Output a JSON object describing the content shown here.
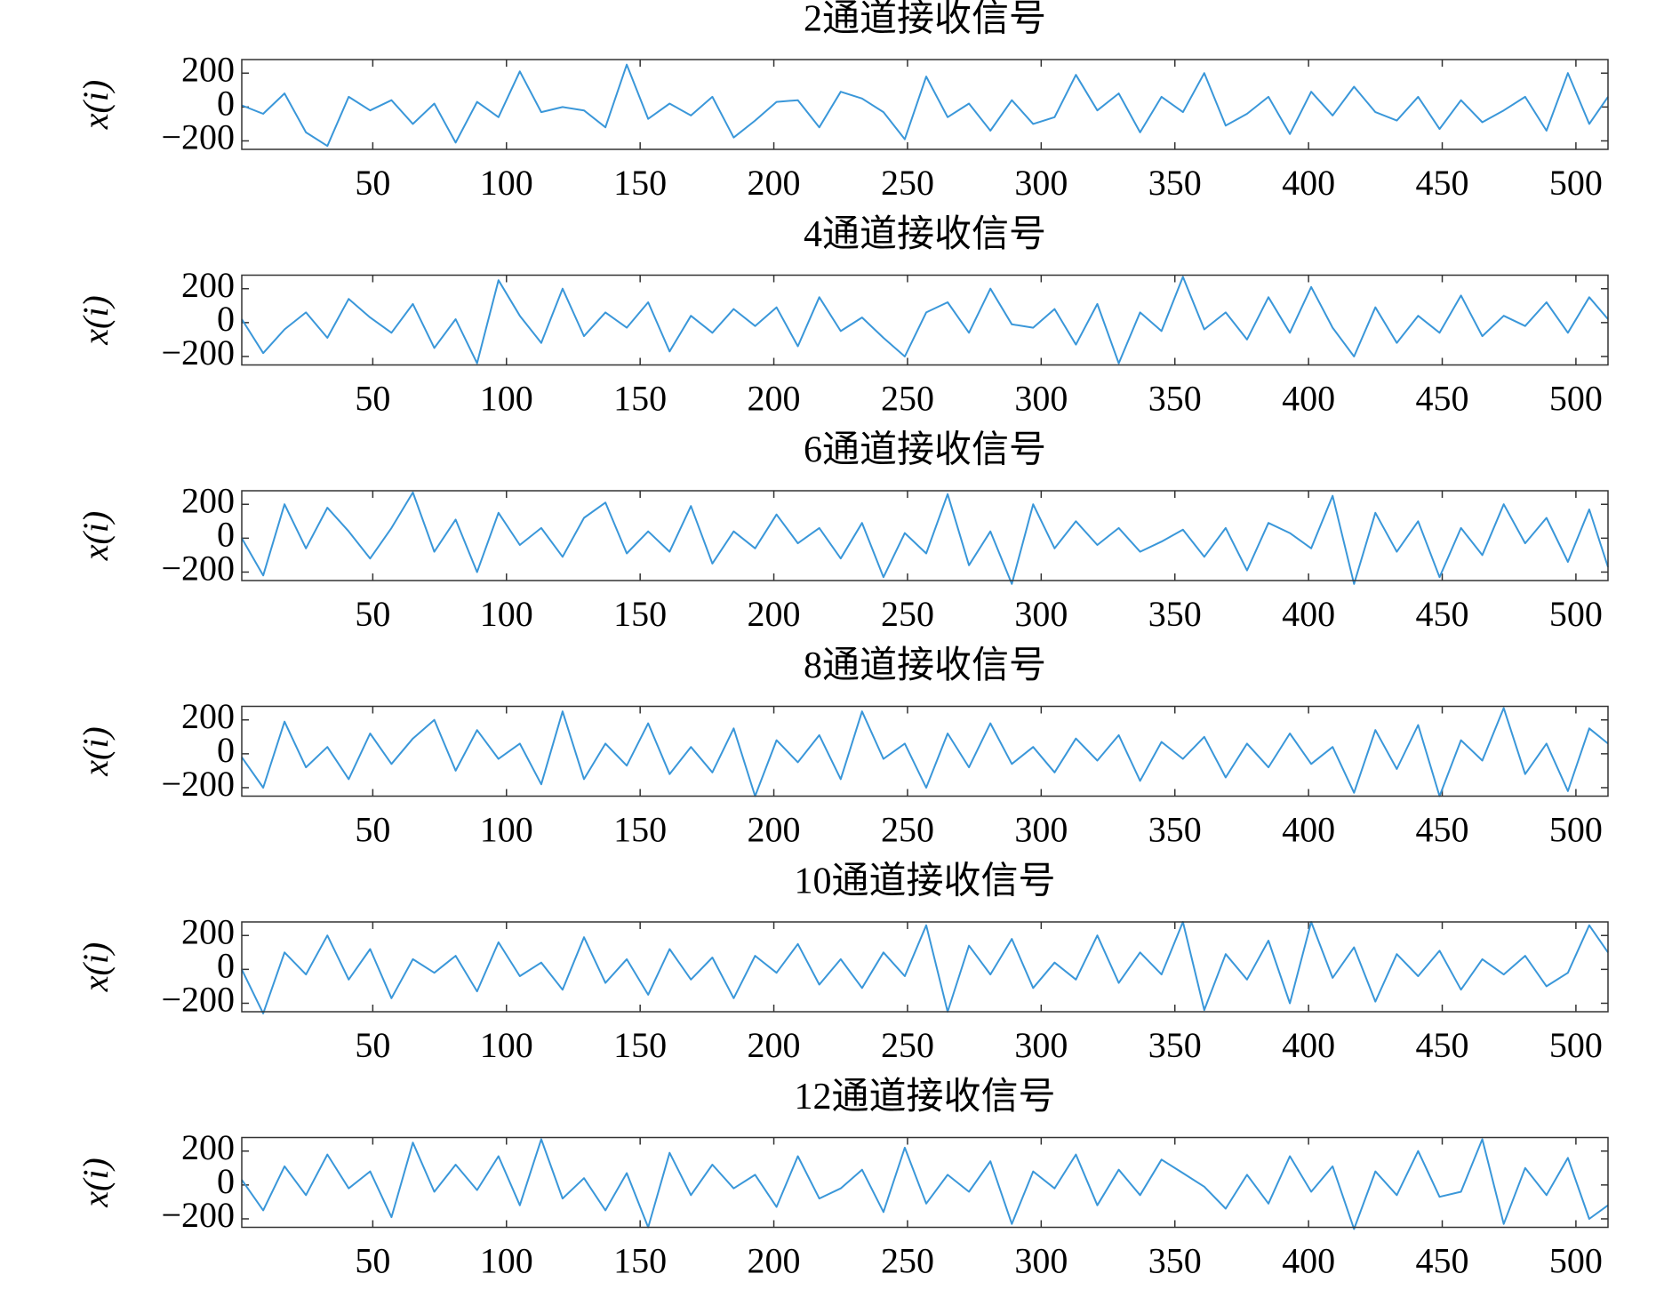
{
  "chart_data": [
    {
      "type": "line",
      "title": "2通道接收信号",
      "ylabel": "x(i)",
      "color": "#3a97d9",
      "x": [
        1,
        9,
        17,
        25,
        33,
        41,
        49,
        57,
        65,
        73,
        81,
        89,
        97,
        105,
        113,
        121,
        129,
        137,
        145,
        153,
        161,
        169,
        177,
        185,
        193,
        201,
        209,
        217,
        225,
        233,
        241,
        249,
        257,
        265,
        273,
        281,
        289,
        297,
        305,
        313,
        321,
        329,
        337,
        345,
        353,
        361,
        369,
        377,
        385,
        393,
        401,
        409,
        417,
        425,
        433,
        441,
        449,
        457,
        465,
        473,
        481,
        489,
        497,
        505,
        512
      ],
      "values": [
        10,
        -40,
        80,
        -150,
        -230,
        60,
        -20,
        40,
        -100,
        20,
        -210,
        30,
        -60,
        210,
        -30,
        0,
        -20,
        -120,
        250,
        -70,
        20,
        -50,
        60,
        -180,
        -80,
        30,
        40,
        -120,
        90,
        50,
        -30,
        -190,
        180,
        -60,
        20,
        -140,
        40,
        -100,
        -60,
        190,
        -20,
        80,
        -150,
        60,
        -30,
        200,
        -110,
        -40,
        60,
        -160,
        90,
        -50,
        120,
        -30,
        -80,
        60,
        -130,
        40,
        -90,
        -20,
        60,
        -140,
        200,
        -100,
        60
      ],
      "xlim": [
        1,
        512
      ],
      "xticks": [
        50,
        100,
        150,
        200,
        250,
        300,
        350,
        400,
        450,
        500
      ],
      "ylim": [
        -250,
        280
      ],
      "yticks": [
        {
          "value": -200,
          "label": "−200"
        },
        0,
        200
      ]
    },
    {
      "type": "line",
      "title": "4通道接收信号",
      "ylabel": "x(i)",
      "color": "#3a97d9",
      "x": [
        1,
        9,
        17,
        25,
        33,
        41,
        49,
        57,
        65,
        73,
        81,
        89,
        97,
        105,
        113,
        121,
        129,
        137,
        145,
        153,
        161,
        169,
        177,
        185,
        193,
        201,
        209,
        217,
        225,
        233,
        241,
        249,
        257,
        265,
        273,
        281,
        289,
        297,
        305,
        313,
        321,
        329,
        337,
        345,
        353,
        361,
        369,
        377,
        385,
        393,
        401,
        409,
        417,
        425,
        433,
        441,
        449,
        457,
        465,
        473,
        481,
        489,
        497,
        505,
        512
      ],
      "values": [
        20,
        -180,
        -40,
        60,
        -90,
        140,
        30,
        -60,
        110,
        -150,
        20,
        -240,
        250,
        40,
        -120,
        200,
        -80,
        60,
        -30,
        120,
        -170,
        40,
        -60,
        80,
        -20,
        90,
        -140,
        150,
        -50,
        30,
        -90,
        -200,
        60,
        120,
        -60,
        200,
        -10,
        -30,
        80,
        -130,
        110,
        -240,
        60,
        -50,
        270,
        -40,
        60,
        -100,
        150,
        -60,
        210,
        -30,
        -200,
        90,
        -120,
        40,
        -60,
        160,
        -80,
        40,
        -20,
        120,
        -60,
        150,
        20
      ],
      "xlim": [
        1,
        512
      ],
      "xticks": [
        50,
        100,
        150,
        200,
        250,
        300,
        350,
        400,
        450,
        500
      ],
      "ylim": [
        -250,
        280
      ],
      "yticks": [
        {
          "value": -200,
          "label": "−200"
        },
        0,
        200
      ]
    },
    {
      "type": "line",
      "title": "6通道接收信号",
      "ylabel": "x(i)",
      "color": "#3a97d9",
      "x": [
        1,
        9,
        17,
        25,
        33,
        41,
        49,
        57,
        65,
        73,
        81,
        89,
        97,
        105,
        113,
        121,
        129,
        137,
        145,
        153,
        161,
        169,
        177,
        185,
        193,
        201,
        209,
        217,
        225,
        233,
        241,
        249,
        257,
        265,
        273,
        281,
        289,
        297,
        305,
        313,
        321,
        329,
        337,
        345,
        353,
        361,
        369,
        377,
        385,
        393,
        401,
        409,
        417,
        425,
        433,
        441,
        449,
        457,
        465,
        473,
        481,
        489,
        497,
        505,
        512
      ],
      "values": [
        0,
        -220,
        200,
        -60,
        180,
        40,
        -120,
        60,
        270,
        -80,
        110,
        -200,
        150,
        -40,
        60,
        -110,
        120,
        210,
        -90,
        40,
        -80,
        190,
        -150,
        40,
        -60,
        140,
        -30,
        60,
        -120,
        90,
        -230,
        30,
        -90,
        260,
        -160,
        40,
        -270,
        200,
        -60,
        100,
        -40,
        60,
        -80,
        -20,
        50,
        -110,
        60,
        -190,
        90,
        30,
        -60,
        250,
        -270,
        150,
        -80,
        100,
        -230,
        60,
        -100,
        200,
        -30,
        120,
        -140,
        170,
        -170
      ],
      "xlim": [
        1,
        512
      ],
      "xticks": [
        50,
        100,
        150,
        200,
        250,
        300,
        350,
        400,
        450,
        500
      ],
      "ylim": [
        -250,
        280
      ],
      "yticks": [
        {
          "value": -200,
          "label": "−200"
        },
        0,
        200
      ]
    },
    {
      "type": "line",
      "title": "8通道接收信号",
      "ylabel": "x(i)",
      "color": "#3a97d9",
      "x": [
        1,
        9,
        17,
        25,
        33,
        41,
        49,
        57,
        65,
        73,
        81,
        89,
        97,
        105,
        113,
        121,
        129,
        137,
        145,
        153,
        161,
        169,
        177,
        185,
        193,
        201,
        209,
        217,
        225,
        233,
        241,
        249,
        257,
        265,
        273,
        281,
        289,
        297,
        305,
        313,
        321,
        329,
        337,
        345,
        353,
        361,
        369,
        377,
        385,
        393,
        401,
        409,
        417,
        425,
        433,
        441,
        449,
        457,
        465,
        473,
        481,
        489,
        497,
        505,
        512
      ],
      "values": [
        -20,
        -200,
        190,
        -80,
        40,
        -150,
        120,
        -60,
        90,
        200,
        -100,
        140,
        -30,
        60,
        -180,
        250,
        -150,
        60,
        -70,
        180,
        -120,
        40,
        -110,
        150,
        -250,
        80,
        -50,
        110,
        -150,
        250,
        -30,
        60,
        -200,
        120,
        -80,
        180,
        -60,
        40,
        -110,
        90,
        -40,
        110,
        -160,
        70,
        -30,
        100,
        -140,
        60,
        -80,
        120,
        -60,
        40,
        -230,
        140,
        -90,
        170,
        -250,
        80,
        -40,
        270,
        -120,
        60,
        -220,
        150,
        60
      ],
      "xlim": [
        1,
        512
      ],
      "xticks": [
        50,
        100,
        150,
        200,
        250,
        300,
        350,
        400,
        450,
        500
      ],
      "ylim": [
        -250,
        280
      ],
      "yticks": [
        {
          "value": -200,
          "label": "−200"
        },
        0,
        200
      ]
    },
    {
      "type": "line",
      "title": "10通道接收信号",
      "ylabel": "x(i)",
      "color": "#3a97d9",
      "x": [
        1,
        9,
        17,
        25,
        33,
        41,
        49,
        57,
        65,
        73,
        81,
        89,
        97,
        105,
        113,
        121,
        129,
        137,
        145,
        153,
        161,
        169,
        177,
        185,
        193,
        201,
        209,
        217,
        225,
        233,
        241,
        249,
        257,
        265,
        273,
        281,
        289,
        297,
        305,
        313,
        321,
        329,
        337,
        345,
        353,
        361,
        369,
        377,
        385,
        393,
        401,
        409,
        417,
        425,
        433,
        441,
        449,
        457,
        465,
        473,
        481,
        489,
        497,
        505,
        512
      ],
      "values": [
        0,
        -260,
        100,
        -30,
        200,
        -60,
        120,
        -170,
        60,
        -20,
        80,
        -130,
        160,
        -40,
        40,
        -120,
        190,
        -80,
        60,
        -150,
        120,
        -60,
        70,
        -170,
        80,
        -20,
        150,
        -90,
        60,
        -110,
        100,
        -40,
        260,
        -250,
        140,
        -30,
        180,
        -110,
        40,
        -60,
        200,
        -80,
        100,
        -30,
        280,
        -240,
        90,
        -60,
        170,
        -200,
        280,
        -50,
        130,
        -190,
        90,
        -40,
        110,
        -120,
        60,
        -30,
        80,
        -100,
        -20,
        260,
        100
      ],
      "xlim": [
        1,
        512
      ],
      "xticks": [
        50,
        100,
        150,
        200,
        250,
        300,
        350,
        400,
        450,
        500
      ],
      "ylim": [
        -250,
        280
      ],
      "yticks": [
        {
          "value": -200,
          "label": "−200"
        },
        0,
        200
      ]
    },
    {
      "type": "line",
      "title": "12通道接收信号",
      "ylabel": "x(i)",
      "color": "#3a97d9",
      "x": [
        1,
        9,
        17,
        25,
        33,
        41,
        49,
        57,
        65,
        73,
        81,
        89,
        97,
        105,
        113,
        121,
        129,
        137,
        145,
        153,
        161,
        169,
        177,
        185,
        193,
        201,
        209,
        217,
        225,
        233,
        241,
        249,
        257,
        265,
        273,
        281,
        289,
        297,
        305,
        313,
        321,
        329,
        337,
        345,
        353,
        361,
        369,
        377,
        385,
        393,
        401,
        409,
        417,
        425,
        433,
        441,
        449,
        457,
        465,
        473,
        481,
        489,
        497,
        505,
        512
      ],
      "values": [
        30,
        -150,
        110,
        -60,
        180,
        -20,
        80,
        -190,
        250,
        -40,
        120,
        -30,
        170,
        -120,
        270,
        -80,
        40,
        -150,
        70,
        -250,
        190,
        -60,
        120,
        -20,
        60,
        -130,
        170,
        -80,
        -20,
        90,
        -160,
        220,
        -110,
        60,
        -40,
        140,
        -230,
        80,
        -20,
        180,
        -120,
        90,
        -60,
        150,
        70,
        -10,
        -140,
        60,
        -110,
        170,
        -40,
        110,
        -260,
        80,
        -60,
        200,
        -70,
        -40,
        270,
        -230,
        100,
        -60,
        160,
        -200,
        -120
      ],
      "xlim": [
        1,
        512
      ],
      "xticks": [
        50,
        100,
        150,
        200,
        250,
        300,
        350,
        400,
        450,
        500
      ],
      "ylim": [
        -250,
        280
      ],
      "yticks": [
        {
          "value": -200,
          "label": "−200"
        },
        0,
        200
      ]
    }
  ]
}
